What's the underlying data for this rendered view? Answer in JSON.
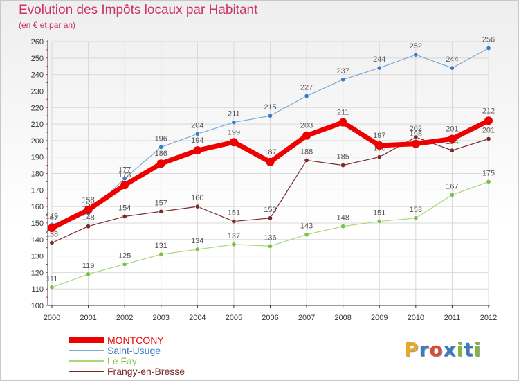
{
  "title": "Evolution des Impôts locaux par Habitant",
  "subtitle": "(en € et par an)",
  "logo": {
    "text": "Proxiti",
    "letters": [
      "P",
      "r",
      "o",
      "x",
      "i",
      "t",
      "i"
    ],
    "colors": [
      "#e8a92a",
      "#3b7bc4",
      "#d94b34",
      "#3b7bc4",
      "#7fb83a",
      "#3b7bc4",
      "#7fb83a"
    ]
  },
  "chart_data": {
    "type": "line",
    "x": [
      "2000",
      "2001",
      "2002",
      "2003",
      "2004",
      "2005",
      "2006",
      "2007",
      "2008",
      "2009",
      "2010",
      "2011",
      "2012"
    ],
    "ylim": [
      100,
      260
    ],
    "yticks": [
      100,
      110,
      120,
      130,
      140,
      150,
      160,
      170,
      180,
      190,
      200,
      210,
      220,
      230,
      240,
      250,
      260
    ],
    "grid": true,
    "legend_position": "bottom-left",
    "series": [
      {
        "name": "Saint-Usuge",
        "color": "#78aad4",
        "marker": "#3b7bc4",
        "width": 1.2,
        "values": [
          149,
          156,
          177,
          196,
          204,
          211,
          215,
          227,
          237,
          244,
          252,
          244,
          256
        ]
      },
      {
        "name": "Le Fay",
        "color": "#a8d878",
        "marker": "#7cc04a",
        "width": 1.2,
        "values": [
          111,
          119,
          125,
          131,
          134,
          137,
          136,
          143,
          148,
          151,
          153,
          167,
          175
        ]
      },
      {
        "name": "Frangy-en-Bresse",
        "color": "#7a2a2a",
        "marker": "#7a2a2a",
        "width": 1.2,
        "values": [
          138,
          148,
          154,
          157,
          160,
          151,
          153,
          188,
          185,
          190,
          202,
          194,
          201
        ]
      },
      {
        "name": "MONTCONY",
        "color": "#ee0000",
        "marker": "#ee0000",
        "width": 7,
        "values": [
          147,
          158,
          173,
          186,
          194,
          199,
          187,
          203,
          211,
          197,
          198,
          201,
          212
        ]
      }
    ],
    "legend_order": [
      "MONTCONY",
      "Saint-Usuge",
      "Le Fay",
      "Frangy-en-Bresse"
    ],
    "legend_colors": {
      "MONTCONY": "#ee0000",
      "Saint-Usuge": "#3b7bc4",
      "Le Fay": "#7cc04a",
      "Frangy-en-Bresse": "#7a2a2a"
    },
    "label_color": "#555555",
    "axis_color": "#333333",
    "grid_color": "#d8d8d8"
  }
}
